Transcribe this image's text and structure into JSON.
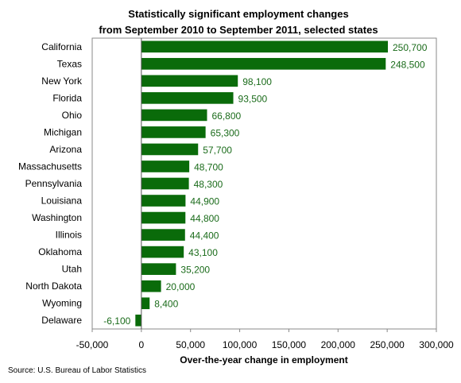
{
  "chart_data": {
    "type": "bar",
    "orientation": "horizontal",
    "title": "Statistically significant employment changes",
    "subtitle": "from September 2010 to September 2011, selected states",
    "xlabel": "Over-the-year change in employment",
    "ylabel": "",
    "xlim": [
      -50000,
      300000
    ],
    "x_ticks": [
      -50000,
      0,
      50000,
      100000,
      150000,
      200000,
      250000,
      300000
    ],
    "x_tick_labels": [
      "-50,000",
      "0",
      "50,000",
      "100,000",
      "150,000",
      "200,000",
      "250,000",
      "300,000"
    ],
    "categories": [
      "California",
      "Texas",
      "New York",
      "Florida",
      "Ohio",
      "Michigan",
      "Arizona",
      "Massachusetts",
      "Pennsylvania",
      "Louisiana",
      "Washington",
      "Illinois",
      "Oklahoma",
      "Utah",
      "North Dakota",
      "Wyoming",
      "Delaware"
    ],
    "values": [
      250700,
      248500,
      98100,
      93500,
      66800,
      65300,
      57700,
      48700,
      48300,
      44900,
      44800,
      44400,
      43100,
      35200,
      20000,
      8400,
      -6100
    ],
    "data_labels": [
      "250,700",
      "248,500",
      "98,100",
      "93,500",
      "66,800",
      "65,300",
      "57,700",
      "48,700",
      "48,300",
      "44,900",
      "44,800",
      "44,400",
      "43,100",
      "35,200",
      "20,000",
      "8,400",
      "-6,100"
    ],
    "bar_color": "#0a6b0a",
    "label_color": "#1a6b1a",
    "grid": false,
    "legend": "none"
  },
  "source": "Source: U.S. Bureau of Labor Statistics"
}
